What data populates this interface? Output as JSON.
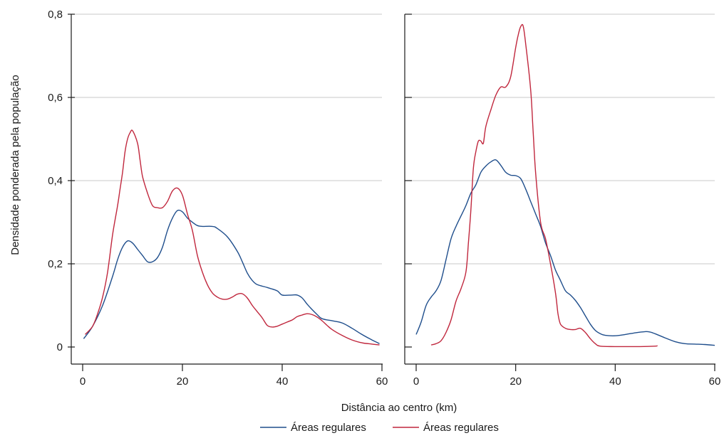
{
  "chart_data": {
    "type": "line",
    "ylabel": "Densidade ponderada pela população",
    "xlabel": "Distância ao centro (km)",
    "xlim": [
      0,
      60
    ],
    "ylim": [
      0,
      0.8
    ],
    "x_ticks": [
      0,
      20,
      40,
      60
    ],
    "y_ticks": [
      0,
      0.2,
      0.4,
      0.6,
      0.8
    ],
    "x_tick_labels": [
      "0",
      "20",
      "40",
      "60"
    ],
    "y_tick_labels": [
      "0",
      "0,2",
      "0,4",
      "0,6",
      "0,8"
    ],
    "grid": "horizontal",
    "legend_position": "bottom",
    "legend": [
      {
        "label": "Áreas regulares",
        "color": "#1f4e8c"
      },
      {
        "label": "Áreas regulares",
        "color": "#c0273d"
      }
    ],
    "panels": [
      {
        "series": [
          {
            "color": "#1f4e8c",
            "points": [
              [
                0.2,
                0.02
              ],
              [
                2,
                0.05
              ],
              [
                4,
                0.1
              ],
              [
                6,
                0.17
              ],
              [
                7,
                0.21
              ],
              [
                8,
                0.24
              ],
              [
                9,
                0.255
              ],
              [
                10,
                0.25
              ],
              [
                11,
                0.235
              ],
              [
                12,
                0.22
              ],
              [
                13,
                0.205
              ],
              [
                14,
                0.205
              ],
              [
                15,
                0.215
              ],
              [
                16,
                0.24
              ],
              [
                17,
                0.28
              ],
              [
                18,
                0.31
              ],
              [
                19,
                0.328
              ],
              [
                20,
                0.325
              ],
              [
                21,
                0.31
              ],
              [
                22,
                0.3
              ],
              [
                23,
                0.292
              ],
              [
                24,
                0.29
              ],
              [
                26,
                0.29
              ],
              [
                27,
                0.285
              ],
              [
                29,
                0.265
              ],
              [
                31,
                0.23
              ],
              [
                32,
                0.205
              ],
              [
                33,
                0.178
              ],
              [
                34,
                0.16
              ],
              [
                35,
                0.15
              ],
              [
                37,
                0.143
              ],
              [
                39,
                0.135
              ],
              [
                40,
                0.125
              ],
              [
                42,
                0.125
              ],
              [
                43,
                0.125
              ],
              [
                44,
                0.118
              ],
              [
                45,
                0.103
              ],
              [
                46,
                0.09
              ],
              [
                47,
                0.078
              ],
              [
                48,
                0.068
              ],
              [
                50,
                0.063
              ],
              [
                52,
                0.058
              ],
              [
                54,
                0.045
              ],
              [
                56,
                0.03
              ],
              [
                58,
                0.017
              ],
              [
                59.5,
                0.008
              ]
            ]
          },
          {
            "color": "#c0273d",
            "points": [
              [
                0.5,
                0.03
              ],
              [
                2,
                0.05
              ],
              [
                3,
                0.08
              ],
              [
                4,
                0.12
              ],
              [
                5,
                0.18
              ],
              [
                6,
                0.27
              ],
              [
                7,
                0.34
              ],
              [
                7.5,
                0.38
              ],
              [
                8,
                0.42
              ],
              [
                8.5,
                0.47
              ],
              [
                9,
                0.5
              ],
              [
                9.5,
                0.515
              ],
              [
                10,
                0.52
              ],
              [
                11,
                0.49
              ],
              [
                11.5,
                0.45
              ],
              [
                12,
                0.41
              ],
              [
                13,
                0.37
              ],
              [
                14,
                0.34
              ],
              [
                15,
                0.335
              ],
              [
                16,
                0.335
              ],
              [
                17,
                0.35
              ],
              [
                18,
                0.375
              ],
              [
                19,
                0.382
              ],
              [
                20,
                0.365
              ],
              [
                21,
                0.32
              ],
              [
                22,
                0.28
              ],
              [
                23,
                0.22
              ],
              [
                24,
                0.18
              ],
              [
                25,
                0.15
              ],
              [
                26,
                0.13
              ],
              [
                27,
                0.12
              ],
              [
                28,
                0.115
              ],
              [
                29,
                0.115
              ],
              [
                30,
                0.12
              ],
              [
                31,
                0.127
              ],
              [
                32,
                0.128
              ],
              [
                33,
                0.118
              ],
              [
                34,
                0.1
              ],
              [
                35,
                0.085
              ],
              [
                36,
                0.07
              ],
              [
                37,
                0.052
              ],
              [
                38,
                0.048
              ],
              [
                39,
                0.05
              ],
              [
                40,
                0.055
              ],
              [
                41,
                0.06
              ],
              [
                42,
                0.065
              ],
              [
                43,
                0.073
              ],
              [
                44,
                0.077
              ],
              [
                45,
                0.08
              ],
              [
                46,
                0.078
              ],
              [
                47,
                0.072
              ],
              [
                48,
                0.063
              ],
              [
                49,
                0.052
              ],
              [
                50,
                0.042
              ],
              [
                52,
                0.028
              ],
              [
                54,
                0.017
              ],
              [
                56,
                0.01
              ],
              [
                58,
                0.007
              ],
              [
                59.5,
                0.005
              ]
            ]
          }
        ]
      },
      {
        "series": [
          {
            "color": "#1f4e8c",
            "points": [
              [
                0,
                0.03
              ],
              [
                1,
                0.06
              ],
              [
                2,
                0.1
              ],
              [
                3,
                0.12
              ],
              [
                4,
                0.135
              ],
              [
                5,
                0.16
              ],
              [
                6,
                0.21
              ],
              [
                7,
                0.26
              ],
              [
                8,
                0.29
              ],
              [
                9,
                0.315
              ],
              [
                10,
                0.34
              ],
              [
                11,
                0.37
              ],
              [
                12,
                0.39
              ],
              [
                13,
                0.42
              ],
              [
                14,
                0.435
              ],
              [
                15,
                0.445
              ],
              [
                16,
                0.45
              ],
              [
                17,
                0.437
              ],
              [
                18,
                0.42
              ],
              [
                19,
                0.413
              ],
              [
                20,
                0.412
              ],
              [
                21,
                0.405
              ],
              [
                22,
                0.38
              ],
              [
                23,
                0.35
              ],
              [
                24,
                0.32
              ],
              [
                25,
                0.29
              ],
              [
                26,
                0.25
              ],
              [
                27,
                0.22
              ],
              [
                28,
                0.185
              ],
              [
                29,
                0.16
              ],
              [
                30,
                0.135
              ],
              [
                31,
                0.125
              ],
              [
                32,
                0.112
              ],
              [
                33,
                0.095
              ],
              [
                34,
                0.075
              ],
              [
                35,
                0.055
              ],
              [
                36,
                0.04
              ],
              [
                37,
                0.032
              ],
              [
                38,
                0.028
              ],
              [
                40,
                0.027
              ],
              [
                42,
                0.03
              ],
              [
                44,
                0.034
              ],
              [
                46,
                0.037
              ],
              [
                47,
                0.036
              ],
              [
                48,
                0.032
              ],
              [
                50,
                0.022
              ],
              [
                52,
                0.013
              ],
              [
                54,
                0.008
              ],
              [
                56,
                0.007
              ],
              [
                58,
                0.006
              ],
              [
                60,
                0.004
              ]
            ]
          },
          {
            "color": "#c0273d",
            "points": [
              [
                3,
                0.005
              ],
              [
                4,
                0.008
              ],
              [
                5,
                0.015
              ],
              [
                6,
                0.035
              ],
              [
                7,
                0.065
              ],
              [
                8,
                0.11
              ],
              [
                9,
                0.14
              ],
              [
                10,
                0.18
              ],
              [
                10.5,
                0.25
              ],
              [
                11,
                0.33
              ],
              [
                11.5,
                0.43
              ],
              [
                12,
                0.47
              ],
              [
                12.5,
                0.495
              ],
              [
                13,
                0.495
              ],
              [
                13.5,
                0.49
              ],
              [
                14,
                0.53
              ],
              [
                15,
                0.57
              ],
              [
                16,
                0.605
              ],
              [
                17,
                0.625
              ],
              [
                18,
                0.625
              ],
              [
                19,
                0.65
              ],
              [
                20,
                0.72
              ],
              [
                20.5,
                0.75
              ],
              [
                21,
                0.77
              ],
              [
                21.5,
                0.772
              ],
              [
                22,
                0.73
              ],
              [
                23,
                0.62
              ],
              [
                23.5,
                0.52
              ],
              [
                24,
                0.42
              ],
              [
                25,
                0.3
              ],
              [
                26,
                0.26
              ],
              [
                27,
                0.2
              ],
              [
                28,
                0.13
              ],
              [
                28.5,
                0.08
              ],
              [
                29,
                0.055
              ],
              [
                30,
                0.045
              ],
              [
                31,
                0.042
              ],
              [
                32,
                0.042
              ],
              [
                33,
                0.045
              ],
              [
                34,
                0.035
              ],
              [
                35,
                0.02
              ],
              [
                36,
                0.008
              ],
              [
                37,
                0.002
              ],
              [
                40,
                0.001
              ],
              [
                45,
                0.001
              ],
              [
                48,
                0.002
              ],
              [
                48.5,
                0.003
              ]
            ]
          }
        ]
      }
    ]
  }
}
